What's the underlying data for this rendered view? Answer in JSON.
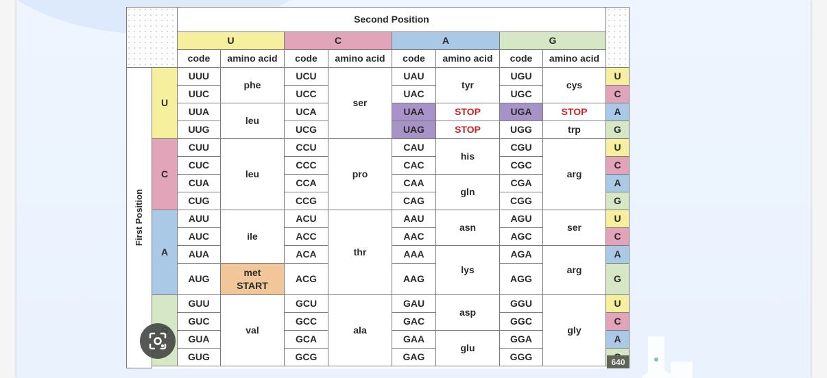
{
  "title": "Second Position",
  "first_position_label": "First Position",
  "second_position_bases": [
    {
      "base": "U",
      "color": "#f6ef9e"
    },
    {
      "base": "C",
      "color": "#e2a4b8"
    },
    {
      "base": "A",
      "color": "#a9c9e6"
    },
    {
      "base": "G",
      "color": "#d6e7c5"
    }
  ],
  "column_headers": {
    "code": "code",
    "amino": "amino acid"
  },
  "first_bases": [
    "U",
    "C",
    "A",
    "G"
  ],
  "third_bases": [
    "U",
    "C",
    "A",
    "G",
    "U",
    "C",
    "A",
    "G",
    "U",
    "C",
    "A",
    "G",
    "U",
    "C",
    "A",
    "G"
  ],
  "codons": {
    "U": [
      "UUU",
      "UUC",
      "UUA",
      "UUG",
      "CUU",
      "CUC",
      "CUA",
      "CUG",
      "AUU",
      "AUC",
      "AUA",
      "AUG",
      "GUU",
      "GUC",
      "GUA",
      "GUG"
    ],
    "C": [
      "UCU",
      "UCC",
      "UCA",
      "UCG",
      "CCU",
      "CCC",
      "CCA",
      "CCG",
      "ACU",
      "ACC",
      "ACA",
      "ACG",
      "GCU",
      "GCC",
      "GCA",
      "GCG"
    ],
    "A": [
      "UAU",
      "UAC",
      "UAA",
      "UAG",
      "CAU",
      "CAC",
      "CAA",
      "CAG",
      "AAU",
      "AAC",
      "AAA",
      "AAG",
      "GAU",
      "GAC",
      "GAA",
      "GAG"
    ],
    "G": [
      "UGU",
      "UGC",
      "UGA",
      "UGG",
      "CGU",
      "CGC",
      "CGA",
      "CGG",
      "AGU",
      "AGC",
      "AGA",
      "AGG",
      "GGU",
      "GGC",
      "GGA",
      "GGG"
    ]
  },
  "amino_acids": {
    "U": [
      {
        "label": "phe",
        "rows": [
          0,
          1
        ]
      },
      {
        "label": "leu",
        "rows": [
          2,
          3
        ]
      },
      {
        "label": "leu",
        "rows": [
          4,
          7
        ]
      },
      {
        "label": "ile",
        "rows": [
          8,
          10
        ]
      },
      {
        "label": "met",
        "label2": "START",
        "rows": [
          11,
          11
        ],
        "highlight": "start"
      },
      {
        "label": "val",
        "rows": [
          12,
          15
        ]
      }
    ],
    "C": [
      {
        "label": "ser",
        "rows": [
          0,
          3
        ]
      },
      {
        "label": "pro",
        "rows": [
          4,
          7
        ]
      },
      {
        "label": "thr",
        "rows": [
          8,
          11
        ]
      },
      {
        "label": "ala",
        "rows": [
          12,
          15
        ]
      }
    ],
    "A": [
      {
        "label": "tyr",
        "rows": [
          0,
          1
        ]
      },
      {
        "label": "STOP",
        "rows": [
          2,
          2
        ],
        "highlight": "stop"
      },
      {
        "label": "STOP",
        "rows": [
          3,
          3
        ],
        "highlight": "stop"
      },
      {
        "label": "his",
        "rows": [
          4,
          5
        ]
      },
      {
        "label": "gln",
        "rows": [
          6,
          7
        ]
      },
      {
        "label": "asn",
        "rows": [
          8,
          9
        ]
      },
      {
        "label": "lys",
        "rows": [
          10,
          11
        ]
      },
      {
        "label": "asp",
        "rows": [
          12,
          13
        ]
      },
      {
        "label": "glu",
        "rows": [
          14,
          15
        ]
      }
    ],
    "G": [
      {
        "label": "cys",
        "rows": [
          0,
          1
        ]
      },
      {
        "label": "STOP",
        "rows": [
          2,
          2
        ],
        "highlight": "stop"
      },
      {
        "label": "trp",
        "rows": [
          3,
          3
        ]
      },
      {
        "label": "arg",
        "rows": [
          4,
          7
        ]
      },
      {
        "label": "ser",
        "rows": [
          8,
          9
        ]
      },
      {
        "label": "arg",
        "rows": [
          10,
          11
        ]
      },
      {
        "label": "gly",
        "rows": [
          12,
          15
        ]
      }
    ]
  },
  "stop_codons": [
    "UAA",
    "UAG",
    "UGA"
  ],
  "start_codon": "AUG",
  "colors": {
    "stop_codon_bg": "#a793c7",
    "start_bg": "#f1c79a",
    "stop_text": "#cc2222"
  },
  "overlay": {
    "lens_button": "visual-search-icon",
    "image_width_badge": "640"
  }
}
